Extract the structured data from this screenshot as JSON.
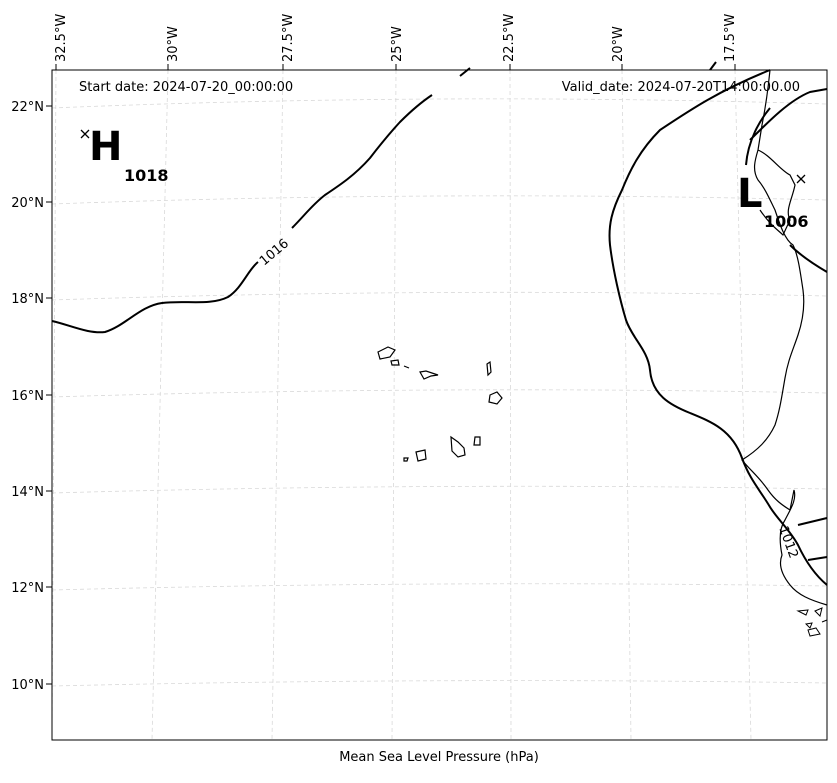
{
  "header": {
    "start_date": "Start date: 2024-07-20_00:00:00",
    "valid_date": "Valid_date: 2024-07-20T14:00:00.00"
  },
  "xlabel": "Mean Sea Level Pressure (hPa)",
  "lon_ticks": [
    "32.5°W",
    "30°W",
    "27.5°W",
    "25°W",
    "22.5°W",
    "20°W",
    "17.5°W"
  ],
  "lat_ticks": [
    "22°N",
    "20°N",
    "18°N",
    "16°N",
    "14°N",
    "12°N",
    "10°N"
  ],
  "high": {
    "letter": "H",
    "value": "1018"
  },
  "low": {
    "letter": "L",
    "value": "1006"
  },
  "contour_labels": [
    "1016",
    "1012"
  ],
  "colors": {
    "contour": "#000000",
    "coast": "#000000",
    "grid": "#cccccc"
  }
}
